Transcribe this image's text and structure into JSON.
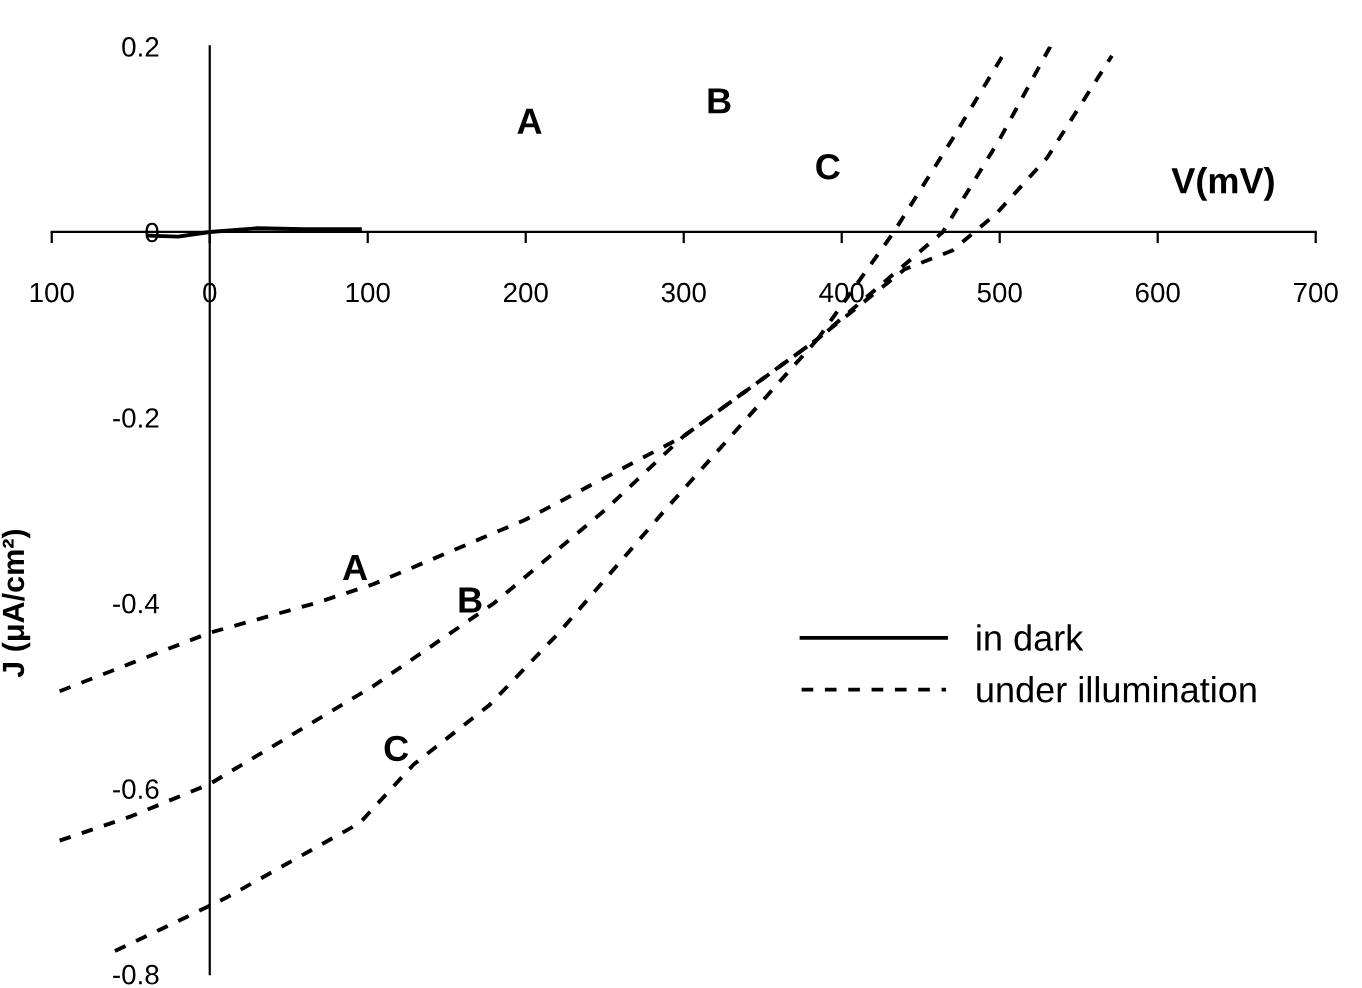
{
  "chart_data": {
    "type": "line",
    "xlabel": "V(mV)",
    "ylabel": "J (μA/cm²)",
    "xlim": [
      -100,
      700
    ],
    "xticks": [
      {
        "value": -100,
        "label": "100"
      },
      0,
      100,
      200,
      300,
      400,
      500,
      600,
      700
    ],
    "ylim": [
      -0.8,
      0.2
    ],
    "yticks": [
      0.2,
      0,
      -0.2,
      -0.4,
      -0.6,
      -0.8
    ],
    "grid": false,
    "legend": "bottom right",
    "marker": "none",
    "series": [
      {
        "name": "in dark",
        "color": "#000000",
        "line_style": "solid",
        "x": [
          -38,
          -20,
          0,
          30,
          60,
          95
        ],
        "values": [
          -0.004,
          -0.005,
          0.0,
          0.004,
          0.003,
          0.003
        ]
      },
      {
        "name": "under illumination",
        "color": "#000000",
        "line_style": "dashed",
        "x": [
          -95,
          -50,
          0,
          67,
          103,
          200,
          300,
          385,
          433,
          470,
          504
        ],
        "values": [
          -0.495,
          -0.465,
          -0.432,
          -0.4,
          -0.38,
          -0.31,
          -0.22,
          -0.115,
          0,
          0.1,
          0.196
        ]
      },
      {
        "color": "#000000",
        "line_style": "dashed",
        "x": [
          -95,
          -50,
          0,
          103,
          180,
          250,
          300,
          385,
          464,
          500,
          532
        ],
        "values": [
          -0.656,
          -0.63,
          -0.595,
          -0.49,
          -0.4,
          -0.3,
          -0.22,
          -0.115,
          0,
          0.1,
          0.2
        ]
      },
      {
        "color": "#000000",
        "line_style": "dashed",
        "x": [
          -60,
          -35,
          10,
          95,
          129,
          177,
          221,
          288,
          385,
          440,
          470,
          498,
          530,
          571
        ],
        "values": [
          -0.775,
          -0.755,
          -0.718,
          -0.637,
          -0.574,
          -0.51,
          -0.432,
          -0.3,
          -0.115,
          -0.04,
          -0.02,
          0.02,
          0.08,
          0.19
        ]
      }
    ],
    "annotations": [
      "A",
      "B",
      "C",
      "A",
      "B",
      "C"
    ]
  }
}
